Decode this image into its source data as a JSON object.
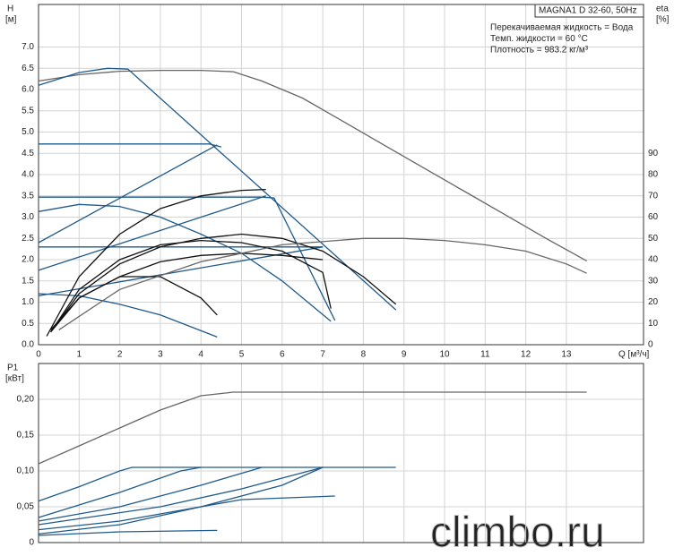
{
  "chart_data": [
    {
      "type": "line",
      "title": "MAGNA1 D 32-60, 50Hz",
      "annotations": [
        "Перекачиваемая жидкость = Вода",
        "Темп. жидкости = 60 °C",
        "Плотность = 983.2 кг/м³"
      ],
      "ylabel": "H",
      "yunit": "[м]",
      "y2label": "eta",
      "y2unit": "[%]",
      "xlabel": "Q [м³/ч]",
      "xlim": [
        0,
        14.9
      ],
      "xticks": [
        0,
        1,
        2,
        3,
        4,
        5,
        6,
        7,
        8,
        9,
        10,
        11,
        12,
        13
      ],
      "ylim": [
        0,
        8
      ],
      "yticks": [
        {
          "value": 0,
          "label": "0.0"
        },
        0.5,
        {
          "value": 1,
          "label": "1.0"
        },
        1.5,
        {
          "value": 2,
          "label": "2.0"
        },
        2.5,
        {
          "value": 3,
          "label": "3.0"
        },
        3.5,
        {
          "value": 4,
          "label": "4.0"
        },
        4.5,
        {
          "value": 5,
          "label": "5.0"
        },
        5.5,
        {
          "value": 6,
          "label": "6.0"
        },
        6.5,
        {
          "value": 7,
          "label": "7.0"
        }
      ],
      "y2lim": [
        0,
        160
      ],
      "y2ticks": [
        0,
        10,
        20,
        30,
        40,
        50,
        60,
        70,
        80,
        90
      ],
      "grid": true,
      "series": [
        {
          "color": "#666666",
          "x": [
            0,
            1,
            2,
            3,
            4,
            4.8,
            5.5,
            6.5,
            7.5,
            8.5,
            9.5,
            10.5,
            11.5,
            12.5,
            13.5
          ],
          "values": [
            6.2,
            6.35,
            6.43,
            6.45,
            6.45,
            6.42,
            6.2,
            5.8,
            5.25,
            4.7,
            4.15,
            3.6,
            3.05,
            2.5,
            1.97
          ]
        },
        {
          "color": "#1f5a8c",
          "x": [
            0,
            1,
            1.7,
            2.2,
            8.8
          ],
          "values": [
            6.1,
            6.4,
            6.5,
            6.48,
            0.82
          ]
        },
        {
          "color": "#1f5a8c",
          "x": [
            0,
            4.2,
            4.5
          ],
          "values": [
            4.72,
            4.72,
            4.65
          ]
        },
        {
          "color": "#1f5a8c",
          "x": [
            0,
            5.5,
            5.8,
            7.3
          ],
          "values": [
            3.47,
            3.47,
            3.45,
            0.57
          ]
        },
        {
          "color": "#1f5a8c",
          "x": [
            0,
            7
          ],
          "values": [
            2.3,
            2.3
          ]
        },
        {
          "color": "#1f5a8c",
          "x": [
            0,
            4.4
          ],
          "values": [
            2.4,
            4.7
          ]
        },
        {
          "color": "#1f5a8c",
          "x": [
            0,
            5.6
          ],
          "values": [
            1.75,
            3.5
          ]
        },
        {
          "color": "#1f5a8c",
          "x": [
            0,
            7
          ],
          "values": [
            1.15,
            2.3
          ]
        },
        {
          "color": "#1f5a8c",
          "x": [
            0,
            1,
            2,
            3,
            4,
            5,
            6,
            7.2
          ],
          "values": [
            3.13,
            3.3,
            3.25,
            3.0,
            2.6,
            2.15,
            1.5,
            0.55
          ]
        },
        {
          "color": "#1f5a8c",
          "x": [
            0,
            1,
            2,
            3,
            4.4
          ],
          "values": [
            1.2,
            1.15,
            0.95,
            0.7,
            0.18
          ]
        },
        {
          "color": "#111111",
          "axis": "y2",
          "x": [
            0.2,
            1,
            2,
            3,
            4,
            5,
            5.6
          ],
          "values": [
            4,
            32,
            52,
            64,
            70,
            72.6,
            73
          ]
        },
        {
          "color": "#111111",
          "axis": "y2",
          "x": [
            0.3,
            1,
            2,
            3,
            4,
            5,
            6,
            7,
            8,
            8.8
          ],
          "values": [
            6,
            24,
            38,
            46,
            50,
            52,
            50,
            44,
            32,
            19
          ]
        },
        {
          "color": "#111111",
          "axis": "y2",
          "x": [
            0.3,
            1,
            2,
            3,
            4,
            5,
            6,
            7,
            7.2
          ],
          "values": [
            6,
            26,
            40,
            47,
            49,
            48,
            44,
            34,
            17
          ]
        },
        {
          "color": "#111111",
          "axis": "y2",
          "x": [
            0.3,
            1,
            2,
            3,
            4,
            4.4
          ],
          "values": [
            7,
            22,
            32,
            32,
            22,
            14
          ]
        },
        {
          "color": "#111111",
          "axis": "y2",
          "x": [
            0.3,
            1,
            2,
            3,
            4,
            5,
            6,
            7
          ],
          "values": [
            6,
            22,
            32,
            39,
            42,
            43,
            42,
            40
          ]
        },
        {
          "color": "#666666",
          "axis": "y2",
          "x": [
            0.5,
            2,
            4,
            6,
            8,
            9,
            10,
            11,
            12,
            13,
            13.5
          ],
          "values": [
            7,
            26,
            39,
            47,
            50,
            50,
            49,
            47,
            44,
            38,
            33.6
          ]
        }
      ]
    },
    {
      "type": "line",
      "ylabel": "P1",
      "yunit": "[кВт]",
      "xlim": [
        0,
        14.9
      ],
      "ylim": [
        0,
        0.25
      ],
      "yticks": [
        0,
        {
          "value": 0.05,
          "label": "0,05"
        },
        {
          "value": 0.1,
          "label": "0,10"
        },
        {
          "value": 0.15,
          "label": "0,15"
        },
        {
          "value": 0.2,
          "label": "0,20"
        }
      ],
      "grid": true,
      "series": [
        {
          "color": "#666666",
          "x": [
            0,
            1,
            2,
            3,
            4,
            4.8,
            13.5
          ],
          "values": [
            0.11,
            0.135,
            0.16,
            0.185,
            0.205,
            0.21,
            0.21
          ]
        },
        {
          "color": "#1f5a8c",
          "x": [
            0,
            1,
            2,
            2.3,
            8.8
          ],
          "values": [
            0.058,
            0.078,
            0.1,
            0.105,
            0.105
          ]
        },
        {
          "color": "#1f5a8c",
          "x": [
            0,
            2,
            3.5,
            4
          ],
          "values": [
            0.035,
            0.07,
            0.1,
            0.105
          ]
        },
        {
          "color": "#1f5a8c",
          "x": [
            0,
            2,
            4,
            5.5
          ],
          "values": [
            0.03,
            0.05,
            0.08,
            0.105
          ]
        },
        {
          "color": "#1f5a8c",
          "x": [
            0,
            3,
            5,
            7
          ],
          "values": [
            0.025,
            0.05,
            0.075,
            0.105
          ]
        },
        {
          "color": "#1f5a8c",
          "x": [
            0,
            2,
            4,
            5,
            7.3
          ],
          "values": [
            0.018,
            0.03,
            0.05,
            0.06,
            0.065
          ]
        },
        {
          "color": "#1f5a8c",
          "x": [
            0,
            2,
            4.4
          ],
          "values": [
            0.01,
            0.015,
            0.017
          ]
        },
        {
          "color": "#1f5a8c",
          "x": [
            0,
            2,
            4,
            6,
            7
          ],
          "values": [
            0.012,
            0.025,
            0.05,
            0.08,
            0.105
          ]
        }
      ]
    }
  ],
  "watermark": "climbo.ru"
}
